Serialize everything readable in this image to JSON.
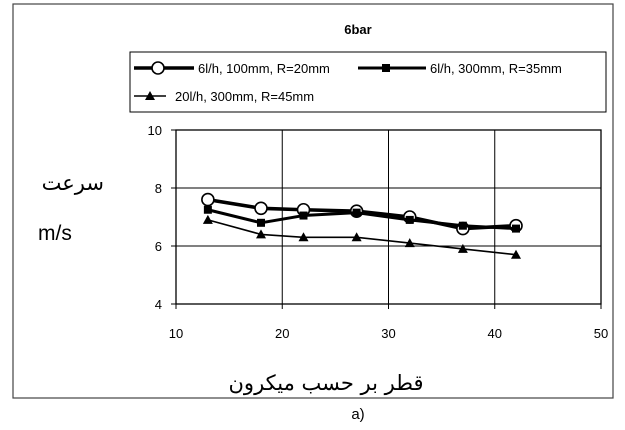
{
  "chart_data": {
    "type": "line",
    "title": "6bar",
    "xlabel": "قطر بر حسب میکرون",
    "ylabel": "سرعت",
    "yunit": "m/s",
    "caption": "a)",
    "xlim": [
      10,
      50
    ],
    "ylim": [
      4,
      10
    ],
    "xticks": [
      10,
      20,
      30,
      40,
      50
    ],
    "yticks": [
      4,
      6,
      8,
      10
    ],
    "grid": true,
    "legend_position": "top",
    "series": [
      {
        "name": "6l/h, 100mm, R=20mm",
        "marker": "circle",
        "x": [
          13,
          18,
          22,
          27,
          32,
          37,
          42
        ],
        "y": [
          7.6,
          7.3,
          7.25,
          7.2,
          7.0,
          6.6,
          6.7
        ]
      },
      {
        "name": "6l/h, 300mm, R=35mm",
        "marker": "square",
        "x": [
          13,
          18,
          22,
          27,
          32,
          37,
          42
        ],
        "y": [
          7.25,
          6.8,
          7.05,
          7.15,
          6.9,
          6.7,
          6.6
        ]
      },
      {
        "name": "20l/h, 300mm, R=45mm",
        "marker": "triangle",
        "x": [
          13,
          18,
          22,
          27,
          32,
          37,
          42
        ],
        "y": [
          6.9,
          6.4,
          6.3,
          6.3,
          6.1,
          5.9,
          5.7
        ]
      }
    ]
  }
}
